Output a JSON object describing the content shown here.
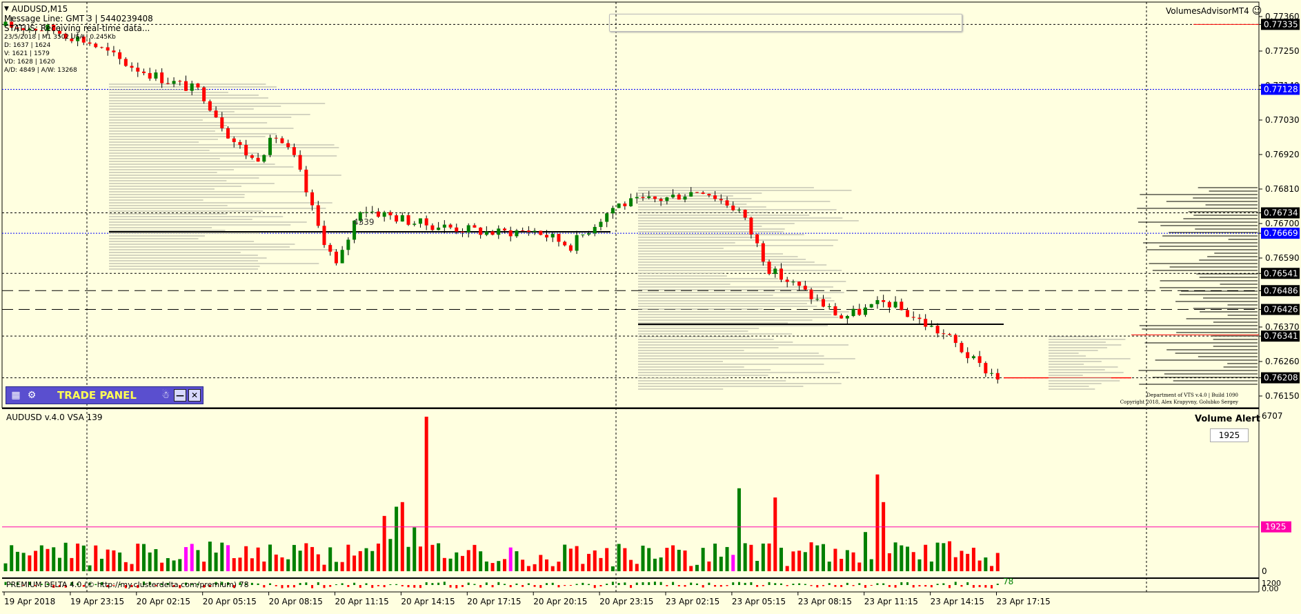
{
  "symbol_header": "AUDUSD,M15",
  "info_lines": [
    "Message Line: GMT 3 | 5440239408",
    "STATUS: Receiving real-time data...",
    "23/5/2018 | M1 3502 USA | 0.245Kb",
    "D: 1637 | 1624",
    "V: 1621 | 1579",
    "VD: 1628 | 1620",
    "A/D: 4849 | A/W: 13268"
  ],
  "top_right_title": "VolumesAdvisorMT4",
  "volume_profile_label": "4339",
  "price_axis": [
    {
      "label": "0.77360",
      "type": "plain"
    },
    {
      "label": "0.77335",
      "type": "black"
    },
    {
      "label": "0.77250",
      "type": "plain"
    },
    {
      "label": "0.77140",
      "type": "plain"
    },
    {
      "label": "0.77128",
      "type": "blue"
    },
    {
      "label": "0.77030",
      "type": "plain"
    },
    {
      "label": "0.76920",
      "type": "plain"
    },
    {
      "label": "0.76810",
      "type": "plain"
    },
    {
      "label": "0.76734",
      "type": "black"
    },
    {
      "label": "0.76700",
      "type": "plain"
    },
    {
      "label": "0.76669",
      "type": "blue"
    },
    {
      "label": "0.76590",
      "type": "plain"
    },
    {
      "label": "0.76541",
      "type": "black"
    },
    {
      "label": "0.76486",
      "type": "black"
    },
    {
      "label": "0.76426",
      "type": "black"
    },
    {
      "label": "0.76370",
      "type": "plain"
    },
    {
      "label": "0.76341",
      "type": "black"
    },
    {
      "label": "0.76260",
      "type": "plain"
    },
    {
      "label": "0.76208",
      "type": "black"
    },
    {
      "label": "0.76150",
      "type": "plain"
    }
  ],
  "copyright_lines": [
    "Department of VTS v.4.0 | Build 1090",
    "Copyright 2018, Alex Krapyvny, Golubko Sergey"
  ],
  "trade_panel": {
    "title": "TRADE PANEL"
  },
  "indicator": {
    "title": "AUDUSD v.4.0 VSA 139",
    "scale_max": "6707",
    "scale_zero": "0",
    "alert_level": "1925",
    "alert_label": "Volume Alert",
    "alert_value": "1925"
  },
  "delta": {
    "title": "PREMIUM DELTA 4.0 (© http://my.clusterdelta.com/premium) 78",
    "value": "78",
    "scale_top": "1200",
    "scale_bottom": "0.00"
  },
  "time_axis": [
    "19 Apr 2018",
    "19 Apr 23:15",
    "20 Apr 02:15",
    "20 Apr 05:15",
    "20 Apr 08:15",
    "20 Apr 11:15",
    "20 Apr 14:15",
    "20 Apr 17:15",
    "20 Apr 20:15",
    "20 Apr 23:15",
    "23 Apr 02:15",
    "23 Apr 05:15",
    "23 Apr 08:15",
    "23 Apr 11:15",
    "23 Apr 14:15",
    "23 Apr 17:15"
  ],
  "colors": {
    "bull": "#008000",
    "bear": "#FF0000",
    "background": "#FFFFE0",
    "alert_line": "#FF00AA",
    "blue_level": "#0000FF",
    "panel": "#5a4fcf"
  }
}
